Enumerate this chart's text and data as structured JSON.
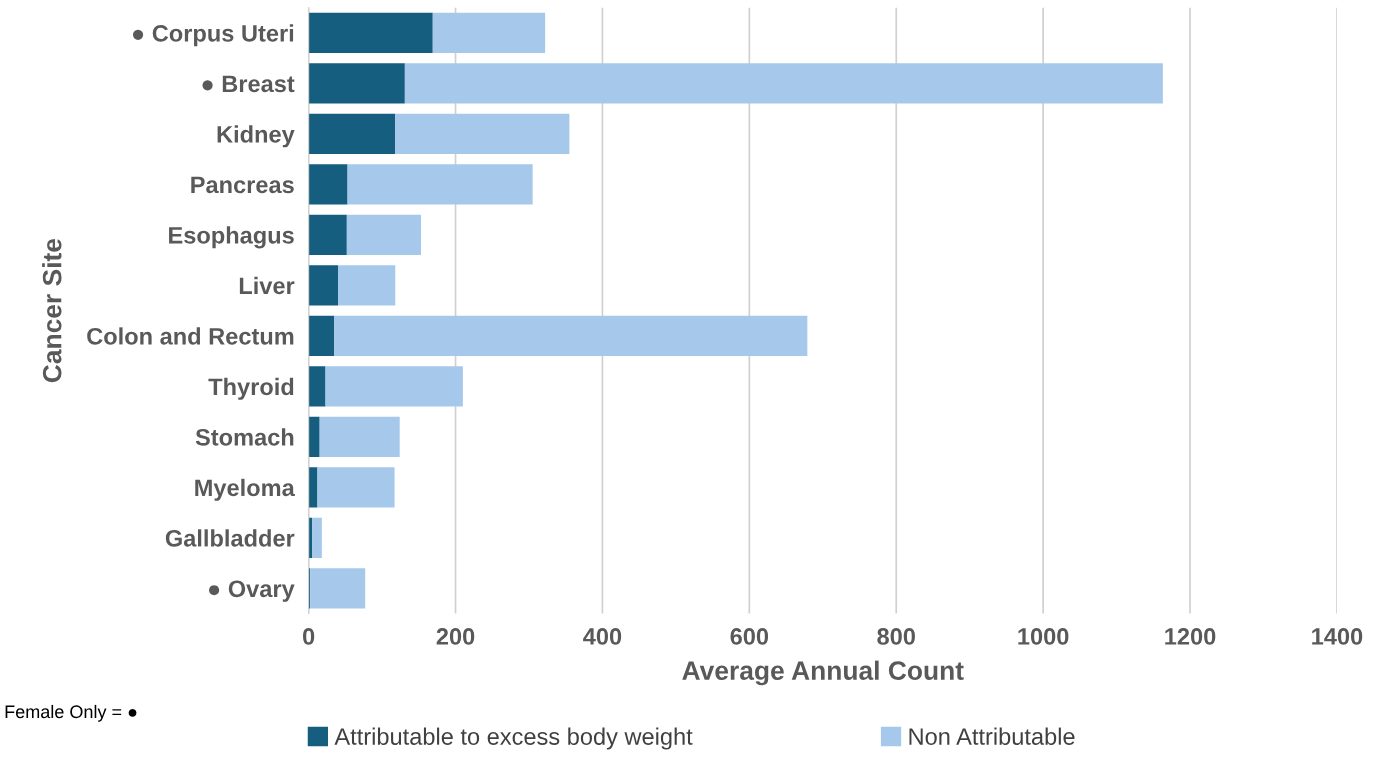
{
  "chart_data": {
    "type": "bar",
    "orientation": "horizontal",
    "stacked": true,
    "xlabel": "Average Annual Count",
    "ylabel": "Cancer Site",
    "categories": [
      "● Corpus Uteri",
      "● Breast",
      "Kidney",
      "Pancreas",
      "Esophagus",
      "Liver",
      "Colon and Rectum",
      "Thyroid",
      "Stomach",
      "Myeloma",
      "Gallbladder",
      "● Ovary"
    ],
    "series": [
      {
        "name": "Attributable to excess body weight",
        "color": "#155e7f",
        "values": [
          169,
          131,
          118,
          53,
          52,
          40,
          35,
          23,
          15,
          12,
          5,
          2
        ]
      },
      {
        "name": "Non Attributable",
        "color": "#a6c9eb",
        "values": [
          153,
          1032,
          237,
          252,
          101,
          78,
          644,
          187,
          109,
          105,
          13,
          75
        ]
      }
    ],
    "xlim": [
      0,
      1400
    ],
    "xticks": [
      0,
      200,
      400,
      600,
      800,
      1000,
      1200,
      1400
    ],
    "grid": "x",
    "legend": "bottom",
    "annotations": [
      "Female Only = ●"
    ]
  }
}
